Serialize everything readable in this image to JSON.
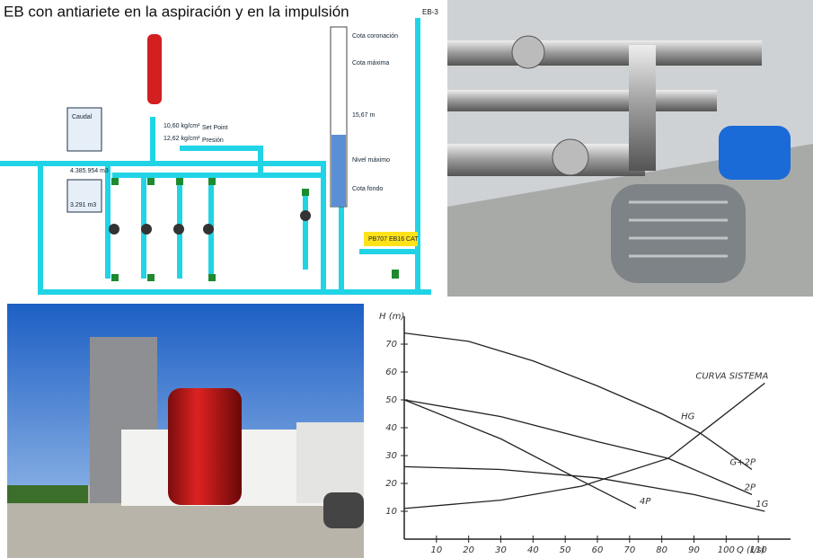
{
  "scada": {
    "title": "EB con antiariete en la aspiración y en la impulsión",
    "tag": "EB-3",
    "labels": [
      "10,60 kg/cm²",
      "12,62 kg/cm²",
      "Set Point",
      "Presión",
      "4.385.954 m3",
      "3.291 m3",
      "Caudal",
      "PB707 EB16 CAT",
      "Cota coronación",
      "Cota máxima",
      "15,67 m",
      "Nivel máximo",
      "Cota fondo"
    ]
  },
  "chart_data": {
    "type": "line",
    "x_label": "Q (ℓ/s)",
    "y_label": "H (m)",
    "xlim": [
      0,
      120
    ],
    "ylim": [
      0,
      80
    ],
    "xticks": [
      10,
      20,
      30,
      40,
      50,
      60,
      70,
      80,
      90,
      100,
      110
    ],
    "yticks": [
      10,
      20,
      30,
      40,
      50,
      60,
      70
    ],
    "series": [
      {
        "name": "CURVA SISTEMA",
        "color": "#222",
        "x": [
          0,
          30,
          55,
          82,
          92,
          112
        ],
        "values": [
          11,
          14,
          19,
          29,
          38,
          56
        ]
      },
      {
        "name": "G+2P",
        "color": "#222",
        "x": [
          0,
          20,
          40,
          60,
          80,
          92,
          108
        ],
        "values": [
          74,
          71,
          64,
          55,
          45,
          38,
          25
        ]
      },
      {
        "name": "2P",
        "color": "#222",
        "x": [
          0,
          30,
          60,
          82,
          108
        ],
        "values": [
          50,
          44,
          35,
          29,
          16
        ]
      },
      {
        "name": "1G",
        "color": "#222",
        "x": [
          0,
          30,
          60,
          90,
          112
        ],
        "values": [
          26,
          25,
          22,
          16,
          10
        ]
      },
      {
        "name": "4P",
        "color": "#222",
        "x": [
          0,
          30,
          55,
          72
        ],
        "values": [
          50,
          36,
          21,
          11
        ]
      }
    ],
    "annotation": "HG"
  }
}
